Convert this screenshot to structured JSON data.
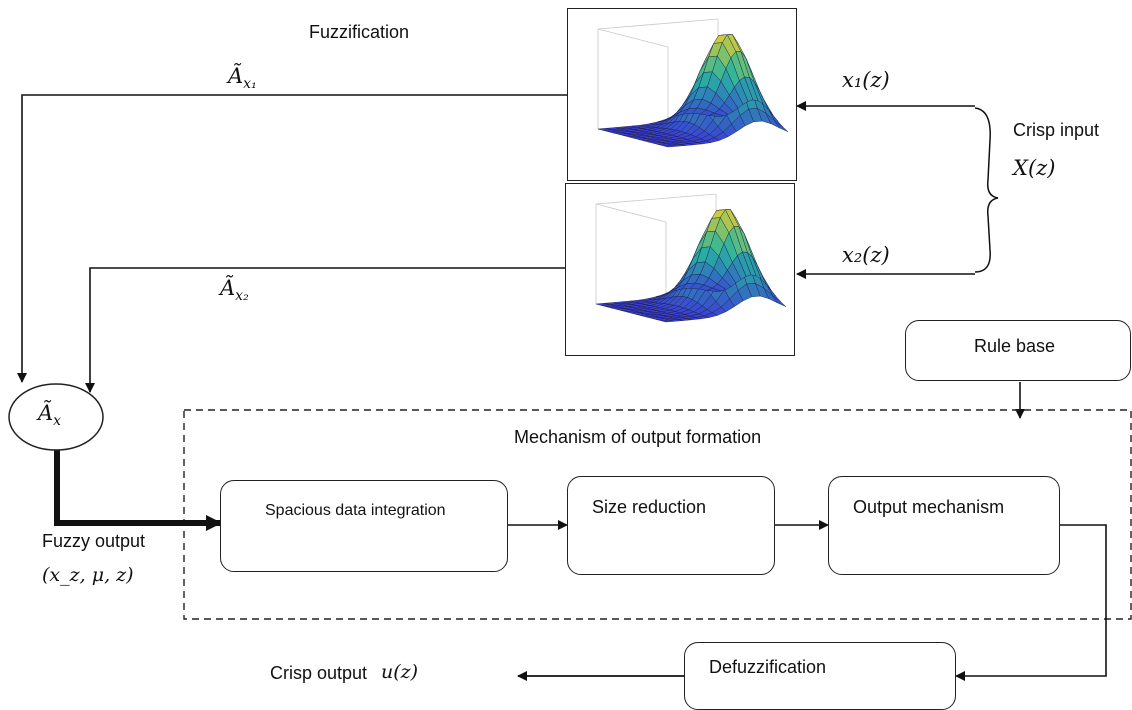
{
  "labels": {
    "fuzzification": "Fuzzification",
    "a_x1": "Ã",
    "a_x1_sub": "x₁",
    "a_x2": "Ã",
    "a_x2_sub": "x₂",
    "a_x": "Ã",
    "a_x_sub": "x",
    "x1_input": "x₁(z)",
    "x2_input": "x₂(z)",
    "crisp_input": "Crisp input",
    "crisp_input_symbol": "X(z)",
    "rule_base": "Rule base",
    "mechanism": "Mechanism of output formation",
    "spacious": "Spacious data integration",
    "size_reduction": "Size reduction",
    "output_mechanism": "Output mechanism",
    "fuzzy_output": "Fuzzy output",
    "fuzzy_output_symbol": "(x_z, μ, z)",
    "defuzzification": "Defuzzification",
    "crisp_output": "Crisp output",
    "crisp_output_symbol": "u(z)"
  },
  "colors": {
    "surface_low": "#3a3fd6",
    "surface_mid": "#27b5a0",
    "surface_high": "#f2d125",
    "line": "#111111"
  }
}
